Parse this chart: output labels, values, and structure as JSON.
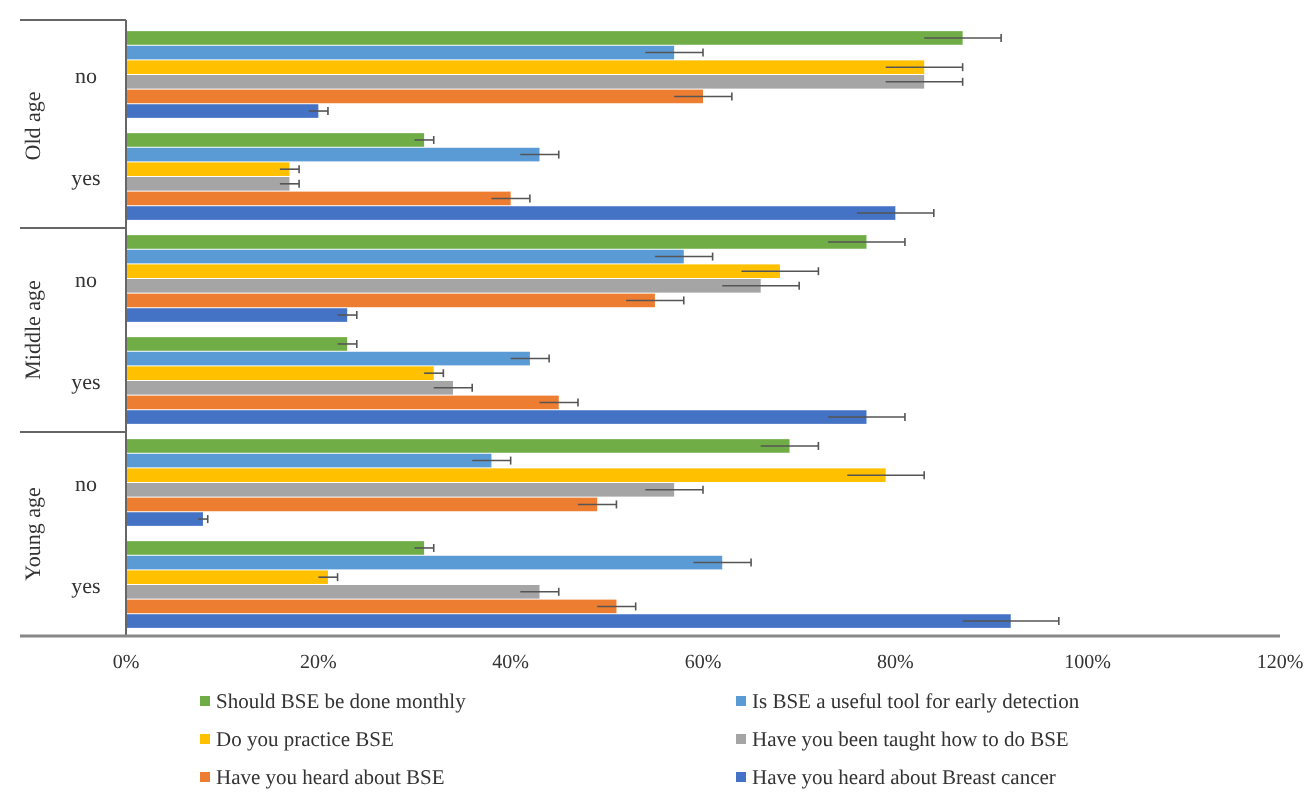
{
  "chart_data": {
    "type": "bar",
    "orientation": "horizontal",
    "categories": [
      "no",
      "yes",
      "no",
      "yes",
      "no",
      "yes"
    ],
    "annotations": [
      "Old age",
      "Middle age",
      "Young age"
    ],
    "xlim": [
      0,
      120
    ],
    "xticks": [
      {
        "value": 0,
        "label": "0%"
      },
      {
        "value": 20,
        "label": "20%"
      },
      {
        "value": 40,
        "label": "40%"
      },
      {
        "value": 60,
        "label": "60%"
      },
      {
        "value": 80,
        "label": "80%"
      },
      {
        "value": 100,
        "label": "100%"
      },
      {
        "value": 120,
        "label": "120%"
      }
    ],
    "grid": false,
    "legend": "bottom",
    "series": [
      {
        "name": "Should BSE be done monthly",
        "color": "#70ad47",
        "values": [
          87,
          31,
          77,
          23,
          69,
          31
        ],
        "errors": [
          4,
          1,
          4,
          1,
          3,
          1
        ]
      },
      {
        "name": "Is BSE a useful tool for early detection",
        "color": "#5b9bd5",
        "values": [
          57,
          43,
          58,
          42,
          38,
          62
        ],
        "errors": [
          3,
          2,
          3,
          2,
          2,
          3
        ]
      },
      {
        "name": "Do you practice BSE",
        "color": "#ffc000",
        "values": [
          83,
          17,
          68,
          32,
          79,
          21
        ],
        "errors": [
          4,
          1,
          4,
          1,
          4,
          1
        ]
      },
      {
        "name": "Have you been taught how to do BSE",
        "color": "#a5a5a5",
        "values": [
          83,
          17,
          66,
          34,
          57,
          43
        ],
        "errors": [
          4,
          1,
          4,
          2,
          3,
          2
        ]
      },
      {
        "name": "Have you heard about BSE",
        "color": "#ed7d31",
        "values": [
          60,
          40,
          55,
          45,
          49,
          51
        ],
        "errors": [
          3,
          2,
          3,
          2,
          2,
          2
        ]
      },
      {
        "name": "Have you heard about Breast cancer",
        "color": "#4472c4",
        "values": [
          20,
          80,
          23,
          77,
          8,
          92
        ],
        "errors": [
          1,
          4,
          1,
          4,
          0.5,
          5
        ]
      }
    ]
  }
}
